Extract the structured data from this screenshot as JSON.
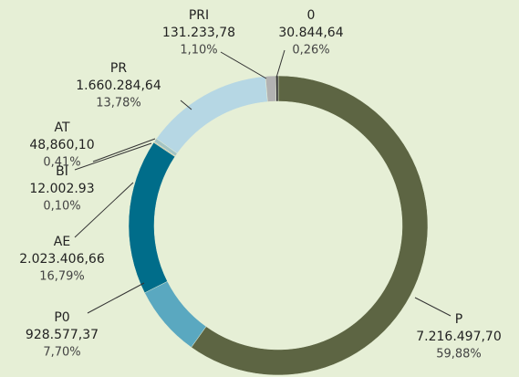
{
  "chart_data": {
    "type": "pie",
    "donut": true,
    "categories": [
      "P",
      "P0",
      "AE",
      "BI",
      "AT",
      "PR",
      "PRI",
      "0"
    ],
    "amount_labels": [
      "7.216.497,70",
      "928.577,37",
      "2.023.406,66",
      "12.002.93",
      "48,860,10",
      "1.660.284,64",
      "131.233,78",
      "30.844,64"
    ],
    "values": [
      59.88,
      7.7,
      16.79,
      0.1,
      0.41,
      13.78,
      1.1,
      0.26
    ],
    "value_labels": [
      "59,88%",
      "7,70%",
      "16,79%",
      "0,10%",
      "0,41%",
      "13,78%",
      "1,10%",
      "0,26%"
    ],
    "colors": [
      "#5d6543",
      "#5aa8c0",
      "#006d8a",
      "#c9b88f",
      "#a3c4c4",
      "#b6d7e4",
      "#b2b2b2",
      "#333333"
    ]
  }
}
